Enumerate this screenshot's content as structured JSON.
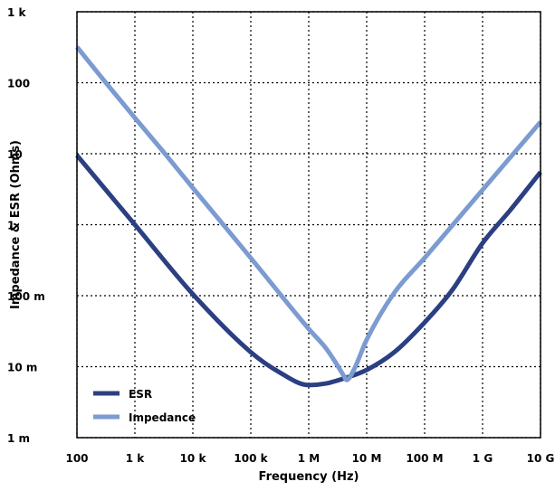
{
  "chart_data": {
    "type": "line",
    "xlabel": "Frequency (Hz)",
    "ylabel": "Impedance & ESR (Ohms)",
    "x_scale": "log",
    "y_scale": "log",
    "xlim": [
      100,
      10000000000
    ],
    "ylim": [
      0.001,
      1000
    ],
    "grid": true,
    "legend_position": "bottom-left",
    "x_ticks": [
      {
        "value": 100,
        "label": "100"
      },
      {
        "value": 1000,
        "label": "1 k"
      },
      {
        "value": 10000,
        "label": "10 k"
      },
      {
        "value": 100000,
        "label": "100 k"
      },
      {
        "value": 1000000,
        "label": "1 M"
      },
      {
        "value": 10000000,
        "label": "10 M"
      },
      {
        "value": 100000000,
        "label": "100 M"
      },
      {
        "value": 1000000000,
        "label": "1 G"
      },
      {
        "value": 10000000000,
        "label": "10 G"
      }
    ],
    "y_ticks": [
      {
        "value": 0.001,
        "label": "1 m"
      },
      {
        "value": 0.01,
        "label": "10 m"
      },
      {
        "value": 0.1,
        "label": "100 m"
      },
      {
        "value": 1,
        "label": "1"
      },
      {
        "value": 10,
        "label": "10"
      },
      {
        "value": 100,
        "label": "100"
      },
      {
        "value": 1000,
        "label": "1 k"
      }
    ],
    "series": [
      {
        "name": "ESR",
        "color": "#2b3f82",
        "x": [
          100,
          1000,
          10000,
          100000,
          300000,
          1000000,
          2000000,
          4000000,
          10000000,
          30000000,
          100000000,
          300000000,
          1000000000,
          3000000000,
          10000000000
        ],
        "y": [
          9.5,
          1.0,
          0.105,
          0.016,
          0.0085,
          0.0055,
          0.0058,
          0.0068,
          0.009,
          0.016,
          0.042,
          0.12,
          0.55,
          1.6,
          5.5
        ]
      },
      {
        "name": "Impedance",
        "color": "#7b9bd1",
        "x": [
          100,
          300,
          1000,
          3000,
          10000,
          100000,
          1000000,
          2000000,
          3000000,
          4000000,
          4500000,
          6000000,
          10000000,
          30000000,
          100000000,
          1000000000,
          10000000000
        ],
        "y": [
          320,
          105,
          32,
          11,
          3.3,
          0.34,
          0.034,
          0.018,
          0.011,
          0.0075,
          0.0065,
          0.009,
          0.024,
          0.11,
          0.34,
          3.1,
          28
        ]
      }
    ]
  }
}
